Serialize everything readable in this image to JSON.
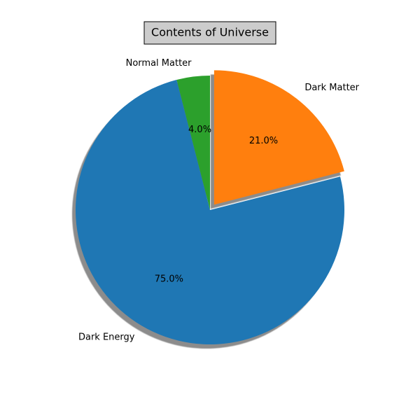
{
  "chart_data": {
    "type": "pie",
    "title": "Contents of Universe",
    "title_box": {
      "fill": "#cccccc",
      "stroke": "#000000"
    },
    "shadow": true,
    "start_angle_deg": 90,
    "direction": "counterclockwise",
    "slices": [
      {
        "label": "Normal Matter",
        "value": 4.0,
        "pct_label": "4.0%",
        "color": "#2ca02c",
        "explode": 0
      },
      {
        "label": "Dark Energy",
        "value": 75.0,
        "pct_label": "75.0%",
        "color": "#1f77b4",
        "explode": 0
      },
      {
        "label": "Dark Matter",
        "value": 21.0,
        "pct_label": "21.0%",
        "color": "#ff7f0e",
        "explode": 0.05
      }
    ]
  }
}
